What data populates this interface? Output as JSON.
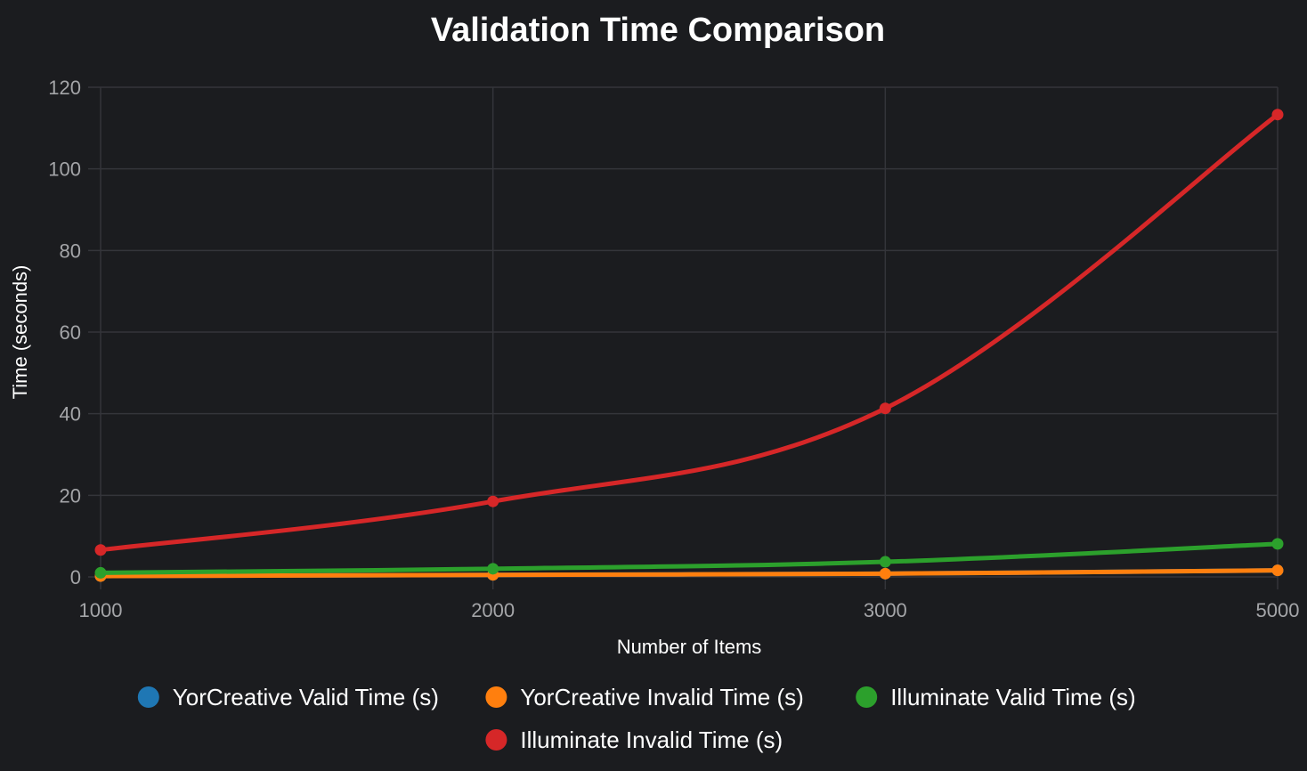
{
  "chart_data": {
    "type": "line",
    "title": "Validation Time Comparison",
    "xlabel": "Number of Items",
    "ylabel": "Time (seconds)",
    "categories": [
      "1000",
      "2000",
      "3000",
      "5000"
    ],
    "ylim": [
      0,
      120
    ],
    "yticks": [
      0,
      20,
      40,
      60,
      80,
      100,
      120
    ],
    "grid": true,
    "legend_position": "bottom",
    "series": [
      {
        "name": "YorCreative Valid Time (s)",
        "color": "#1f77b4",
        "values": [
          0.2,
          0.5,
          0.8,
          1.6
        ]
      },
      {
        "name": "YorCreative Invalid Time (s)",
        "color": "#ff7f0e",
        "values": [
          0.2,
          0.5,
          0.8,
          1.6
        ]
      },
      {
        "name": "Illuminate Valid Time (s)",
        "color": "#2ca02c",
        "values": [
          1.0,
          2.0,
          3.7,
          8.1
        ]
      },
      {
        "name": "Illuminate Invalid Time (s)",
        "color": "#d62728",
        "values": [
          6.6,
          18.5,
          41.3,
          113.3
        ]
      }
    ]
  }
}
